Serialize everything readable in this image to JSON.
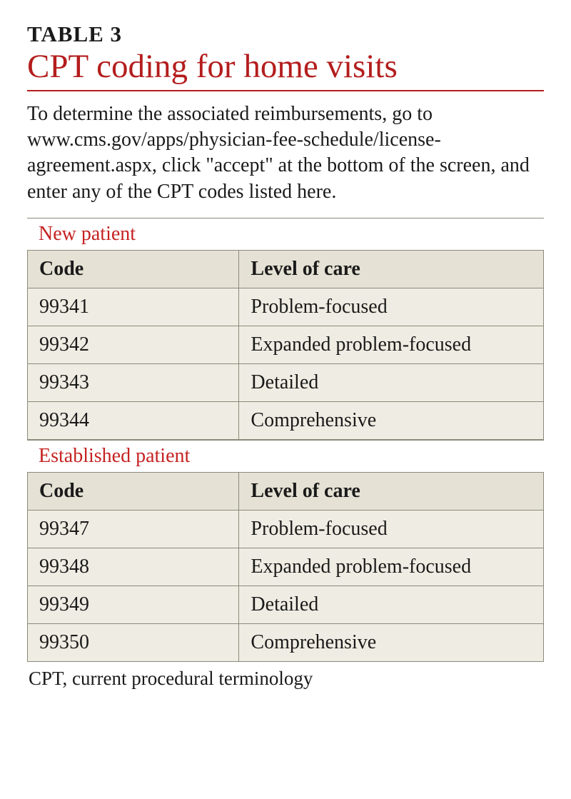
{
  "table_label": "TABLE 3",
  "title": "CPT coding for home visits",
  "intro": "To determine the associated reimbursements, go to www.cms.gov/apps/physician-fee-schedule/license-agreement.aspx, click \"accept\" at the bottom of the screen, and enter any of the CPT codes listed here.",
  "sections": [
    {
      "heading": "New patient",
      "columns": [
        "Code",
        "Level of care"
      ],
      "rows": [
        [
          "99341",
          "Problem-focused"
        ],
        [
          "99342",
          "Expanded problem-focused"
        ],
        [
          "99343",
          "Detailed"
        ],
        [
          "99344",
          "Comprehensive"
        ]
      ]
    },
    {
      "heading": "Established patient",
      "columns": [
        "Code",
        "Level of care"
      ],
      "rows": [
        [
          "99347",
          "Problem-focused"
        ],
        [
          "99348",
          "Expanded problem-focused"
        ],
        [
          "99349",
          "Detailed"
        ],
        [
          "99350",
          "Comprehensive"
        ]
      ]
    }
  ],
  "footnote": "CPT, current procedural terminology",
  "style": {
    "type": "table",
    "page_bg": "#ffffff",
    "accent_color": "#b41d1d",
    "section_heading_color": "#c62222",
    "text_color": "#1a1a1a",
    "header_cell_bg": "#e5e2d5",
    "data_cell_bg": "#efede3",
    "border_color": "#8a8a7a",
    "column_widths": [
      "41%",
      "59%"
    ],
    "title_fontsize": 47,
    "label_fontsize": 31,
    "body_fontsize": 28,
    "cell_fontsize": 28,
    "font_family": "Georgia / serif"
  }
}
